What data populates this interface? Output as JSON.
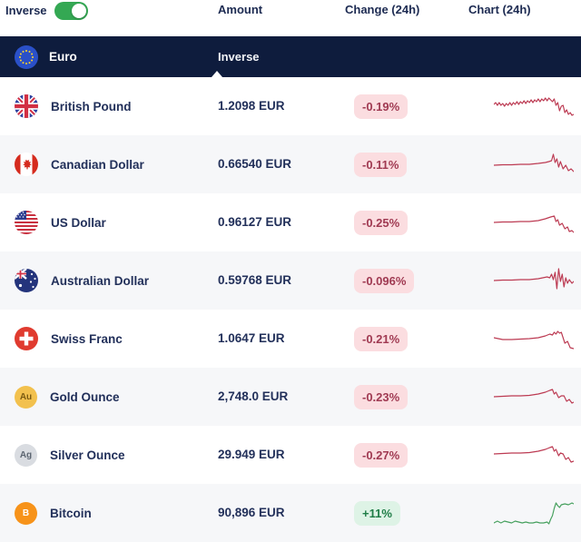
{
  "header": {
    "inverse_label": "Inverse",
    "columns": {
      "amount": "Amount",
      "change": "Change (24h)",
      "chart": "Chart (24h)"
    },
    "inverse_toggle_on": true
  },
  "base": {
    "name": "Euro",
    "flag": "eu",
    "inverse_label": "Inverse"
  },
  "colors": {
    "header_navy": "#0e1c3d",
    "text_navy": "#22305a",
    "toggle_green": "#34a853",
    "spark_down": "#bc3a52",
    "spark_up": "#46a05e",
    "badge_down_bg": "#fbdde0",
    "badge_down_text": "#a03a52",
    "badge_up_bg": "#def3e6",
    "badge_up_text": "#1f7d47",
    "shaded_row_bg": "#f6f7f9"
  },
  "rows": [
    {
      "name": "British Pound",
      "amount": "1.2098 EUR",
      "change": "-0.19%",
      "direction": "down",
      "shaded": false,
      "icon": {
        "type": "flag",
        "name": "gb"
      },
      "spark": [
        [
          0,
          15
        ],
        [
          2,
          13
        ],
        [
          4,
          16
        ],
        [
          6,
          13
        ],
        [
          8,
          16
        ],
        [
          10,
          14
        ],
        [
          12,
          17
        ],
        [
          14,
          14
        ],
        [
          16,
          16
        ],
        [
          18,
          13
        ],
        [
          20,
          16
        ],
        [
          22,
          13
        ],
        [
          24,
          15
        ],
        [
          26,
          12
        ],
        [
          28,
          15
        ],
        [
          30,
          12
        ],
        [
          32,
          14
        ],
        [
          34,
          11
        ],
        [
          36,
          14
        ],
        [
          38,
          11
        ],
        [
          40,
          13
        ],
        [
          42,
          10
        ],
        [
          44,
          13
        ],
        [
          46,
          10
        ],
        [
          48,
          12
        ],
        [
          50,
          9
        ],
        [
          52,
          12
        ],
        [
          54,
          9
        ],
        [
          56,
          11
        ],
        [
          58,
          8
        ],
        [
          60,
          11
        ],
        [
          62,
          8
        ],
        [
          64,
          10
        ],
        [
          66,
          12
        ],
        [
          68,
          9
        ],
        [
          70,
          16
        ],
        [
          72,
          13
        ],
        [
          74,
          22
        ],
        [
          76,
          17
        ],
        [
          78,
          16
        ],
        [
          80,
          24
        ],
        [
          82,
          21
        ],
        [
          84,
          26
        ],
        [
          86,
          24
        ],
        [
          88,
          27
        ],
        [
          90,
          26
        ]
      ]
    },
    {
      "name": "Canadian Dollar",
      "amount": "0.66540 EUR",
      "change": "-0.11%",
      "direction": "down",
      "shaded": true,
      "icon": {
        "type": "flag",
        "name": "ca"
      },
      "spark": [
        [
          0,
          18
        ],
        [
          10,
          17.5
        ],
        [
          20,
          17.5
        ],
        [
          30,
          17
        ],
        [
          40,
          17
        ],
        [
          50,
          16
        ],
        [
          58,
          15
        ],
        [
          62,
          14
        ],
        [
          65,
          13
        ],
        [
          67,
          6
        ],
        [
          69,
          15
        ],
        [
          71,
          11
        ],
        [
          73,
          20
        ],
        [
          75,
          14
        ],
        [
          78,
          22
        ],
        [
          81,
          18
        ],
        [
          84,
          24
        ],
        [
          87,
          22
        ],
        [
          90,
          25
        ]
      ]
    },
    {
      "name": "US Dollar",
      "amount": "0.96127 EUR",
      "change": "-0.25%",
      "direction": "down",
      "shaded": false,
      "icon": {
        "type": "flag",
        "name": "us"
      },
      "spark": [
        [
          0,
          17
        ],
        [
          10,
          16.5
        ],
        [
          20,
          16.5
        ],
        [
          30,
          16
        ],
        [
          40,
          16
        ],
        [
          50,
          15
        ],
        [
          58,
          13
        ],
        [
          64,
          11
        ],
        [
          68,
          10
        ],
        [
          70,
          16
        ],
        [
          72,
          14
        ],
        [
          74,
          20
        ],
        [
          77,
          18
        ],
        [
          80,
          24
        ],
        [
          83,
          22
        ],
        [
          85,
          27
        ],
        [
          88,
          26
        ],
        [
          90,
          28
        ]
      ]
    },
    {
      "name": "Australian Dollar",
      "amount": "0.59768 EUR",
      "change": "-0.096%",
      "direction": "down",
      "shaded": true,
      "icon": {
        "type": "flag",
        "name": "au"
      },
      "spark": [
        [
          0,
          17
        ],
        [
          10,
          16.5
        ],
        [
          20,
          16.5
        ],
        [
          30,
          16
        ],
        [
          40,
          16
        ],
        [
          50,
          15
        ],
        [
          55,
          14
        ],
        [
          60,
          13
        ],
        [
          63,
          14
        ],
        [
          65,
          10
        ],
        [
          67,
          16
        ],
        [
          69,
          8
        ],
        [
          71,
          26
        ],
        [
          73,
          4
        ],
        [
          75,
          18
        ],
        [
          77,
          10
        ],
        [
          79,
          24
        ],
        [
          81,
          14
        ],
        [
          83,
          20
        ],
        [
          85,
          16
        ],
        [
          88,
          20
        ],
        [
          90,
          18
        ]
      ]
    },
    {
      "name": "Swiss Franc",
      "amount": "1.0647 EUR",
      "change": "-0.21%",
      "direction": "down",
      "shaded": false,
      "icon": {
        "type": "flag",
        "name": "ch"
      },
      "spark": [
        [
          0,
          16
        ],
        [
          5,
          17
        ],
        [
          10,
          18
        ],
        [
          20,
          18
        ],
        [
          30,
          17.5
        ],
        [
          40,
          17
        ],
        [
          50,
          16
        ],
        [
          58,
          14
        ],
        [
          63,
          12
        ],
        [
          66,
          13
        ],
        [
          68,
          10
        ],
        [
          70,
          12
        ],
        [
          72,
          9
        ],
        [
          74,
          11
        ],
        [
          76,
          10
        ],
        [
          80,
          22
        ],
        [
          83,
          20
        ],
        [
          86,
          27
        ],
        [
          90,
          28
        ]
      ]
    },
    {
      "name": "Gold Ounce",
      "amount": "2,748.0 EUR",
      "change": "-0.23%",
      "direction": "down",
      "shaded": true,
      "icon": {
        "type": "badge",
        "name": "gold",
        "text": "Au",
        "bg": "#f2c14e",
        "fg": "#7a5a12"
      },
      "spark": [
        [
          0,
          17
        ],
        [
          10,
          16.5
        ],
        [
          20,
          16
        ],
        [
          30,
          16
        ],
        [
          40,
          15.5
        ],
        [
          50,
          14
        ],
        [
          58,
          12
        ],
        [
          63,
          10
        ],
        [
          66,
          9
        ],
        [
          68,
          14
        ],
        [
          70,
          12
        ],
        [
          73,
          18
        ],
        [
          76,
          16
        ],
        [
          79,
          16
        ],
        [
          82,
          22
        ],
        [
          85,
          20
        ],
        [
          88,
          24
        ],
        [
          90,
          23
        ]
      ]
    },
    {
      "name": "Silver Ounce",
      "amount": "29.949 EUR",
      "change": "-0.27%",
      "direction": "down",
      "shaded": false,
      "icon": {
        "type": "badge",
        "name": "silver",
        "text": "Ag",
        "bg": "#d9dce1",
        "fg": "#5b6470"
      },
      "spark": [
        [
          0,
          16
        ],
        [
          10,
          15.5
        ],
        [
          20,
          15
        ],
        [
          30,
          15
        ],
        [
          40,
          14.5
        ],
        [
          50,
          13
        ],
        [
          58,
          11
        ],
        [
          63,
          9
        ],
        [
          66,
          8
        ],
        [
          68,
          13
        ],
        [
          70,
          11
        ],
        [
          73,
          18
        ],
        [
          75,
          15
        ],
        [
          78,
          16
        ],
        [
          81,
          22
        ],
        [
          84,
          20
        ],
        [
          87,
          25
        ],
        [
          90,
          24
        ]
      ]
    },
    {
      "name": "Bitcoin",
      "amount": "90,896 EUR",
      "change": "+11%",
      "direction": "up",
      "shaded": true,
      "icon": {
        "type": "badge",
        "name": "bitcoin",
        "text": "B",
        "bg": "#f7931a",
        "fg": "#ffffff"
      },
      "spark": [
        [
          0,
          28
        ],
        [
          4,
          26
        ],
        [
          8,
          28
        ],
        [
          12,
          26
        ],
        [
          16,
          27
        ],
        [
          20,
          28
        ],
        [
          24,
          26
        ],
        [
          28,
          27
        ],
        [
          32,
          28
        ],
        [
          36,
          27
        ],
        [
          40,
          28
        ],
        [
          44,
          28
        ],
        [
          48,
          27
        ],
        [
          52,
          28
        ],
        [
          56,
          28
        ],
        [
          60,
          27
        ],
        [
          62,
          29
        ],
        [
          64,
          24
        ],
        [
          66,
          20
        ],
        [
          68,
          12
        ],
        [
          70,
          6
        ],
        [
          72,
          9
        ],
        [
          74,
          11
        ],
        [
          76,
          8
        ],
        [
          80,
          7
        ],
        [
          84,
          8
        ],
        [
          88,
          6
        ],
        [
          90,
          7
        ]
      ]
    }
  ]
}
